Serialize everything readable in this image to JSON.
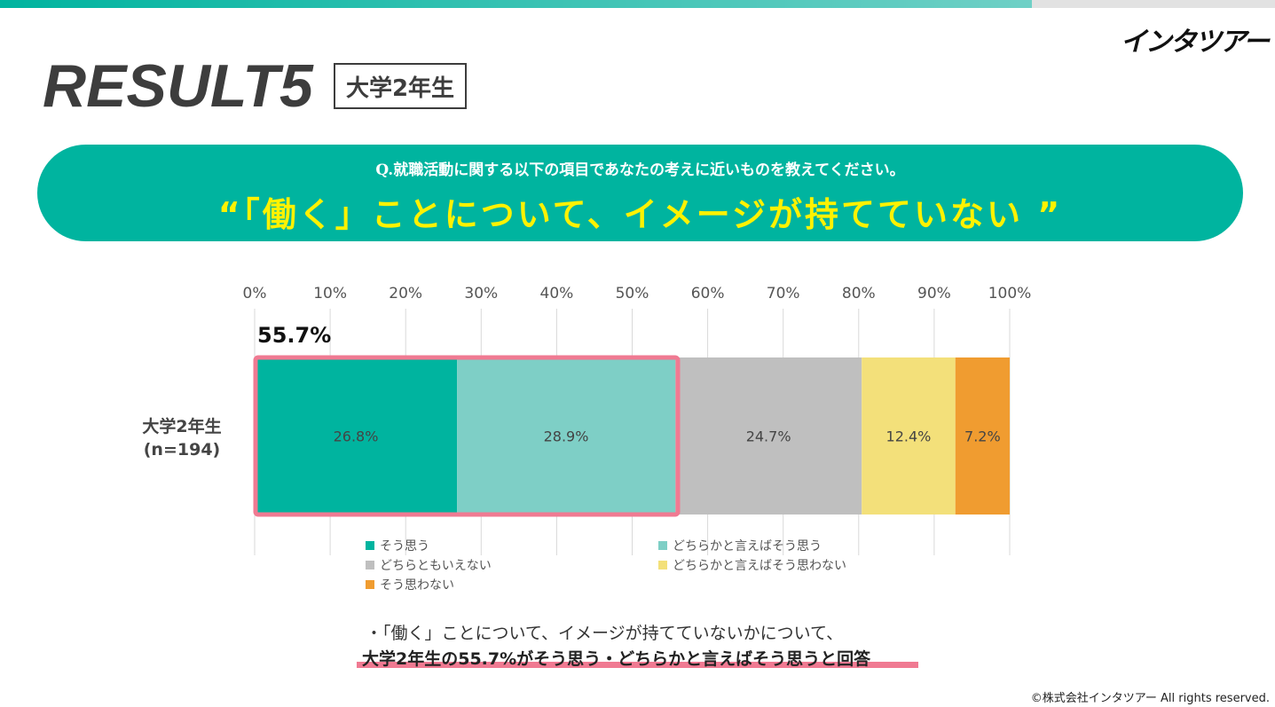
{
  "brand": {
    "logo_text": "インタツアー",
    "copyright": "©株式会社インタツアー All rights reserved."
  },
  "header": {
    "title": "RESULT5",
    "grade_badge": "大学2年生"
  },
  "question": {
    "text": "Q.就職活動に関する以下の項目であなたの考えに近いものを教えてください。",
    "statement": "“「働く」ことについて、イメージが持てていない ”"
  },
  "highlight": {
    "label": "55.7%",
    "color": "#f07a92"
  },
  "chart_data": {
    "type": "bar",
    "orientation": "horizontal",
    "stacked": true,
    "categories": [
      "大学2年生\n(n=194)"
    ],
    "category_line1": "大学2年生",
    "category_line2": "(n=194)",
    "xlim": [
      0,
      100
    ],
    "x_ticks": [
      "0%",
      "10%",
      "20%",
      "30%",
      "40%",
      "50%",
      "60%",
      "70%",
      "80%",
      "90%",
      "100%"
    ],
    "grid": true,
    "legend_position": "bottom",
    "series": [
      {
        "name": "そう思う",
        "values": [
          26.8
        ],
        "label": "26.8%",
        "color": "#00b49f"
      },
      {
        "name": "どちらかと言えばそう思う",
        "values": [
          28.9
        ],
        "label": "28.9%",
        "color": "#7ecfc6"
      },
      {
        "name": "どちらともいえない",
        "values": [
          24.7
        ],
        "label": "24.7%",
        "color": "#bfbfbf"
      },
      {
        "name": "どちらかと言えばそう思わない",
        "values": [
          12.4
        ],
        "label": "12.4%",
        "color": "#f3e07a"
      },
      {
        "name": "そう思わない",
        "values": [
          7.2
        ],
        "label": "7.2%",
        "color": "#f09c30"
      }
    ]
  },
  "summary": {
    "line1": "・「働く」ことについて、イメージが持てていないかについて、",
    "line2": "大学2年生の55.7%がそう思う・どちらかと言えばそう思うと回答"
  }
}
